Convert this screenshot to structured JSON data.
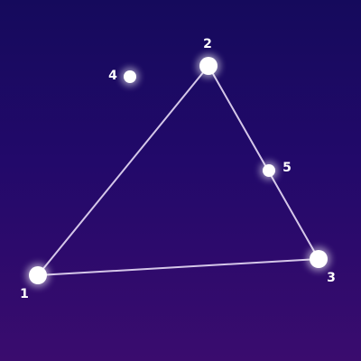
{
  "puzzle": {
    "stars": [
      {
        "id": "1",
        "label": "1"
      },
      {
        "id": "2",
        "label": "2"
      },
      {
        "id": "3",
        "label": "3"
      },
      {
        "id": "4",
        "label": "4"
      },
      {
        "id": "5",
        "label": "5"
      }
    ],
    "connections": [
      [
        "1",
        "2"
      ],
      [
        "2",
        "3"
      ],
      [
        "3",
        "1"
      ]
    ]
  },
  "colors": {
    "sky_top": "#150a5c",
    "sky_bottom": "#3a0c6e",
    "star": "#ffffff",
    "line": "#e8dcf7"
  }
}
